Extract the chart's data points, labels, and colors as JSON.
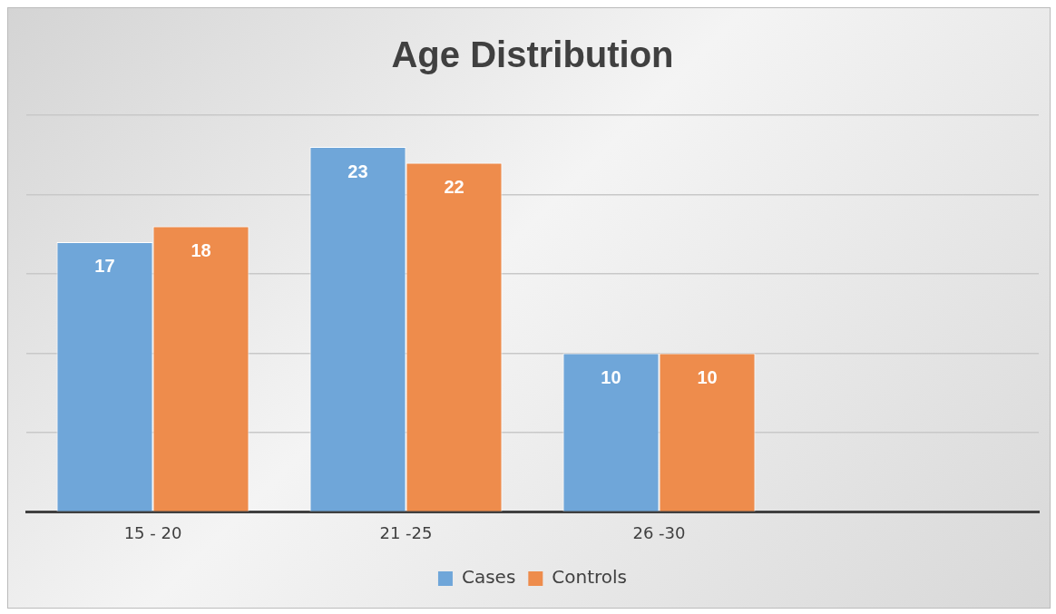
{
  "chart_data": {
    "type": "bar",
    "title": "Age Distribution",
    "categories": [
      "15 - 20",
      "21 -25",
      "26 -30",
      null
    ],
    "series": [
      {
        "name": "Cases",
        "color": "#6fa6d9",
        "values": [
          17,
          23,
          10,
          null
        ]
      },
      {
        "name": "Controls",
        "color": "#ee8c4c",
        "values": [
          18,
          22,
          10,
          null
        ]
      }
    ],
    "ylim": [
      0,
      25
    ],
    "yticks": [
      {
        "value": 0,
        "label": null
      },
      {
        "value": 5,
        "label": null
      },
      {
        "value": 10,
        "label": null
      },
      {
        "value": 15,
        "label": null
      },
      {
        "value": 20,
        "label": null
      },
      {
        "value": 25,
        "label": null
      }
    ],
    "tick_labels": "x",
    "grid": "y",
    "legend": "bottom",
    "data_labels": true
  }
}
